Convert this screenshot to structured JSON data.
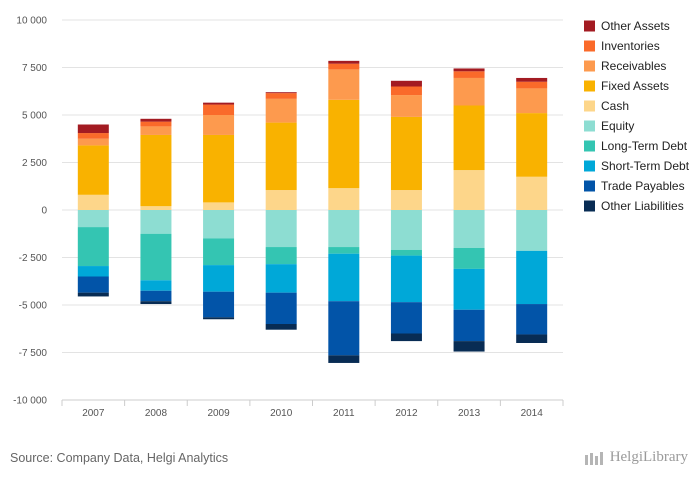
{
  "chart_data": {
    "type": "bar",
    "stacked": true,
    "categories": [
      "2007",
      "2008",
      "2009",
      "2010",
      "2011",
      "2012",
      "2013",
      "2014"
    ],
    "ylim": [
      -10000,
      10000
    ],
    "yticks": [
      10000,
      7500,
      5000,
      2500,
      0,
      -2500,
      -5000,
      -7500,
      -10000
    ],
    "ytick_labels": [
      "10 000",
      "7 500",
      "5 000",
      "2 500",
      "0",
      "-2 500",
      "-5 000",
      "-7 500",
      "-10 000"
    ],
    "grid": true,
    "legend_position": "right",
    "positive_series": [
      {
        "name": "Cash",
        "color": "#FDD68A",
        "values": [
          800,
          200,
          400,
          1050,
          1150,
          1050,
          2100,
          1750
        ]
      },
      {
        "name": "Fixed Assets",
        "color": "#F9B200",
        "values": [
          2600,
          3750,
          3550,
          3550,
          4650,
          3850,
          3400,
          3350
        ]
      },
      {
        "name": "Receivables",
        "color": "#FD9A4E",
        "values": [
          350,
          450,
          1050,
          1250,
          1600,
          1150,
          1450,
          1300
        ]
      },
      {
        "name": "Inventories",
        "color": "#FA6A2A",
        "values": [
          300,
          250,
          550,
          300,
          300,
          450,
          350,
          350
        ]
      },
      {
        "name": "Other Assets",
        "color": "#A31B22",
        "values": [
          450,
          150,
          100,
          50,
          150,
          300,
          150,
          200
        ]
      }
    ],
    "negative_series": [
      {
        "name": "Equity",
        "color": "#8DDDD2",
        "values": [
          -900,
          -1250,
          -1500,
          -1950,
          -1950,
          -2100,
          -2000,
          -2150
        ]
      },
      {
        "name": "Long-Term Debt",
        "color": "#34C5B2",
        "values": [
          -2050,
          -2450,
          -1400,
          -900,
          -350,
          -300,
          -1100,
          0
        ]
      },
      {
        "name": "Short-Term Debt",
        "color": "#00A8D8",
        "values": [
          -550,
          -550,
          -1400,
          -1500,
          -2500,
          -2450,
          -2150,
          -2800
        ]
      },
      {
        "name": "Trade Payables",
        "color": "#0254A8",
        "values": [
          -850,
          -550,
          -1350,
          -1650,
          -2850,
          -1650,
          -1650,
          -1600
        ]
      },
      {
        "name": "Other Liabilities",
        "color": "#082C54",
        "values": [
          -200,
          -150,
          -100,
          -300,
          -400,
          -400,
          -550,
          -450
        ]
      }
    ],
    "legend_order": [
      "Other Assets",
      "Inventories",
      "Receivables",
      "Fixed Assets",
      "Cash",
      "Equity",
      "Long-Term Debt",
      "Short-Term Debt",
      "Trade Payables",
      "Other Liabilities"
    ]
  },
  "footer": {
    "source": "Source: Company Data, Helgi Analytics",
    "brand": "HelgiLibrary"
  }
}
